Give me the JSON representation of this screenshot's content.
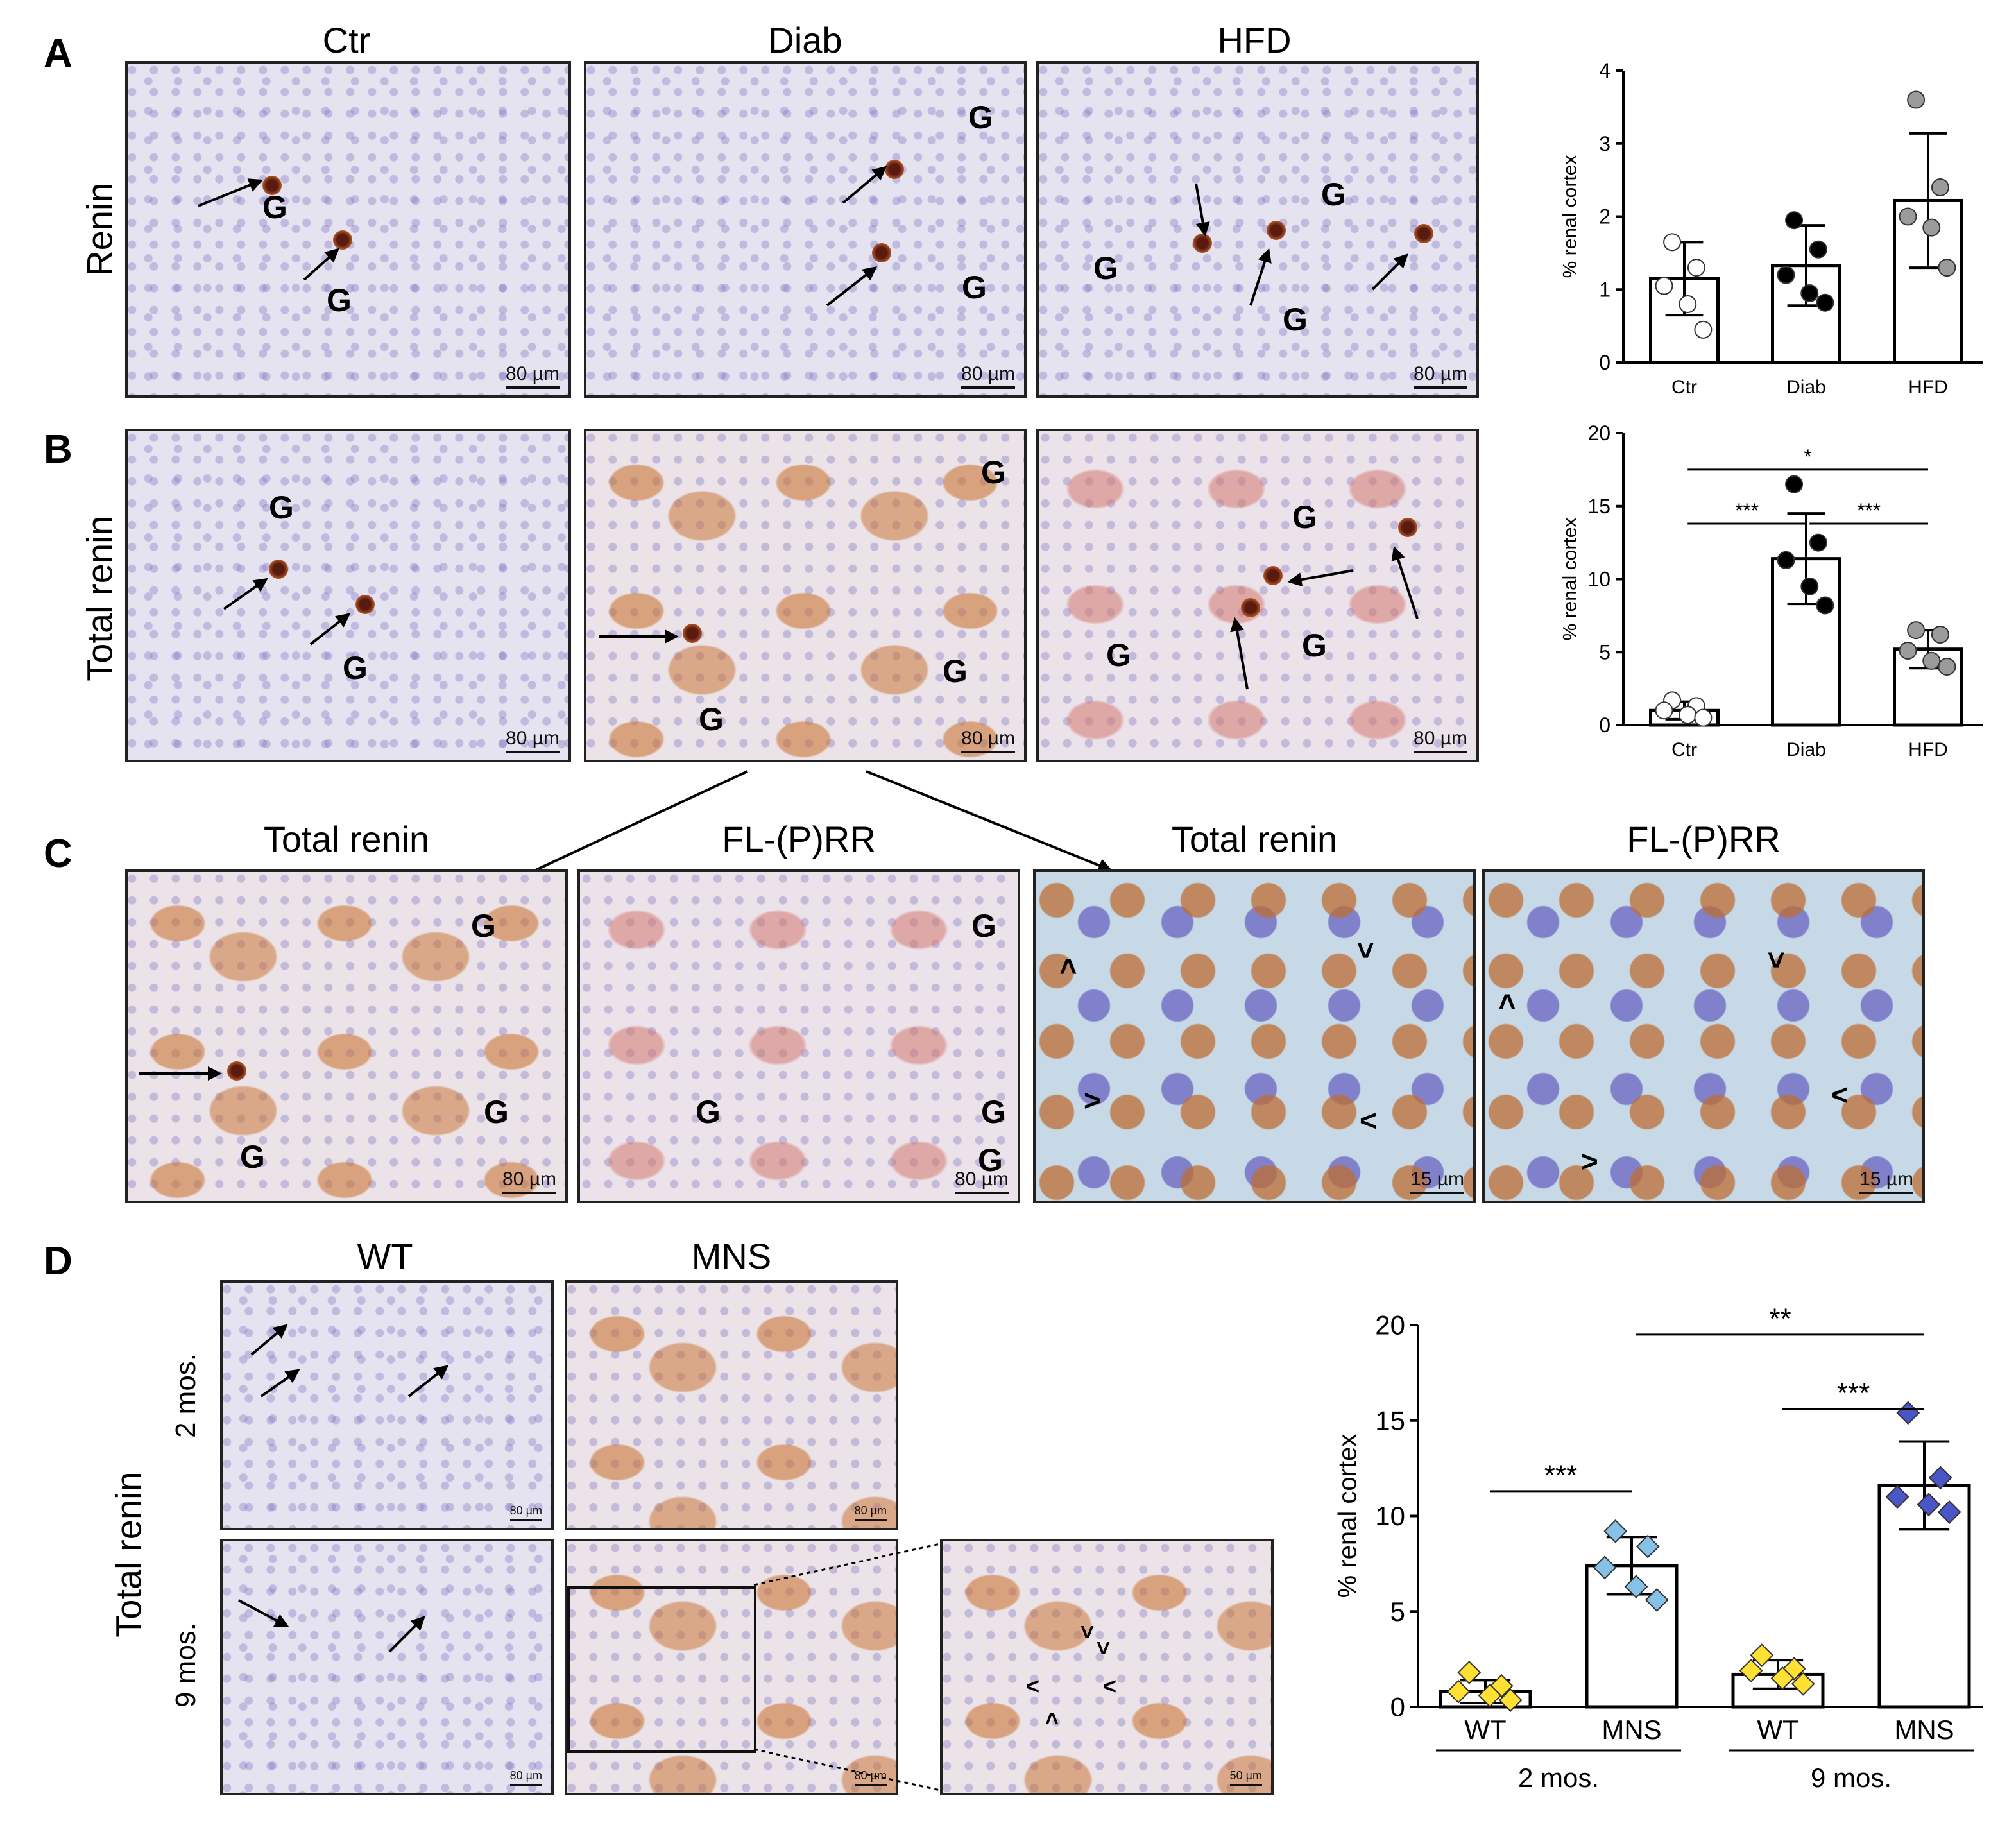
{
  "panels": {
    "A": {
      "letter": "A",
      "row_label": "Renin",
      "columns": [
        "Ctr",
        "Diab",
        "HFD"
      ],
      "scale_labels": [
        "80 µm",
        "80 µm",
        "80 µm"
      ],
      "g_label": "G"
    },
    "B": {
      "letter": "B",
      "row_label": "Total renin",
      "scale_labels": [
        "80 µm",
        "80 µm",
        "80 µm"
      ],
      "g_label": "G"
    },
    "C": {
      "letter": "C",
      "columns": [
        "Total renin",
        "FL-(P)RR",
        "Total renin",
        "FL-(P)RR"
      ],
      "scale_labels": [
        "80 µm",
        "80 µm",
        "15 µm",
        "15 µm"
      ],
      "g_label": "G",
      "chevron": "<"
    },
    "D": {
      "letter": "D",
      "row_label": "Total renin",
      "columns": [
        "WT",
        "MNS"
      ],
      "rows": [
        "2 mos.",
        "9 mos."
      ],
      "scale_labels": [
        "80 µm",
        "80 µm",
        "80 µm",
        "80 µm",
        "50 µm"
      ]
    }
  },
  "chart_data": [
    {
      "id": "A",
      "type": "bar",
      "categories": [
        "Ctr",
        "Diab",
        "HFD"
      ],
      "values": [
        1.15,
        1.33,
        2.22
      ],
      "errors": [
        0.5,
        0.55,
        0.92
      ],
      "points": [
        [
          1.65,
          1.3,
          1.05,
          0.8,
          0.45
        ],
        [
          1.95,
          1.55,
          1.2,
          0.95,
          0.82
        ],
        [
          3.6,
          2.4,
          2.0,
          1.85,
          1.3
        ]
      ],
      "point_fill": [
        "#ffffff",
        "#000000",
        "#9b9b9b"
      ],
      "ylabel": "% renal cortex",
      "ylim": [
        0,
        4
      ],
      "yticks": [
        0,
        1,
        2,
        3,
        4
      ],
      "significance": []
    },
    {
      "id": "B",
      "type": "bar",
      "categories": [
        "Ctr",
        "Diab",
        "HFD"
      ],
      "values": [
        1.0,
        11.4,
        5.2
      ],
      "errors": [
        0.6,
        3.1,
        1.3
      ],
      "points": [
        [
          1.7,
          1.3,
          1.0,
          0.7,
          0.5
        ],
        [
          16.5,
          12.5,
          11.3,
          9.5,
          8.2
        ],
        [
          6.5,
          6.2,
          5.1,
          4.4,
          4.0
        ]
      ],
      "point_fill": [
        "#ffffff",
        "#000000",
        "#9b9b9b"
      ],
      "ylabel": "% renal cortex",
      "ylim": [
        0,
        20
      ],
      "yticks": [
        0,
        5,
        10,
        15,
        20
      ],
      "significance": [
        {
          "from": 0,
          "to": 1,
          "label": "***",
          "y": 13.8
        },
        {
          "from": 1,
          "to": 2,
          "label": "***",
          "y": 13.8
        },
        {
          "from": 0,
          "to": 2,
          "label": "*",
          "y": 17.5
        }
      ]
    },
    {
      "id": "D",
      "type": "bar",
      "categories": [
        "WT",
        "MNS",
        "WT",
        "MNS"
      ],
      "groups": [
        "2 mos.",
        "9 mos."
      ],
      "values": [
        0.8,
        7.4,
        1.7,
        11.6
      ],
      "errors": [
        0.6,
        1.5,
        0.75,
        2.3
      ],
      "points": [
        [
          1.8,
          1.1,
          0.8,
          0.6,
          0.35
        ],
        [
          9.2,
          8.4,
          7.3,
          6.3,
          5.6
        ],
        [
          2.7,
          2.0,
          1.9,
          1.5,
          1.2
        ],
        [
          15.4,
          12.0,
          11.0,
          10.6,
          10.2
        ]
      ],
      "point_fill": [
        "#ffe033",
        "#86c1e8",
        "#ffe033",
        "#4a55c7"
      ],
      "ylabel": "% renal cortex",
      "ylim": [
        0,
        20
      ],
      "yticks": [
        0,
        5,
        10,
        15,
        20
      ],
      "significance": [
        {
          "from": 0,
          "to": 1,
          "label": "***",
          "y": 11.3
        },
        {
          "from": 2,
          "to": 3,
          "label": "***",
          "y": 15.6
        },
        {
          "from": 1,
          "to": 3,
          "label": "**",
          "y": 19.5
        }
      ]
    }
  ]
}
